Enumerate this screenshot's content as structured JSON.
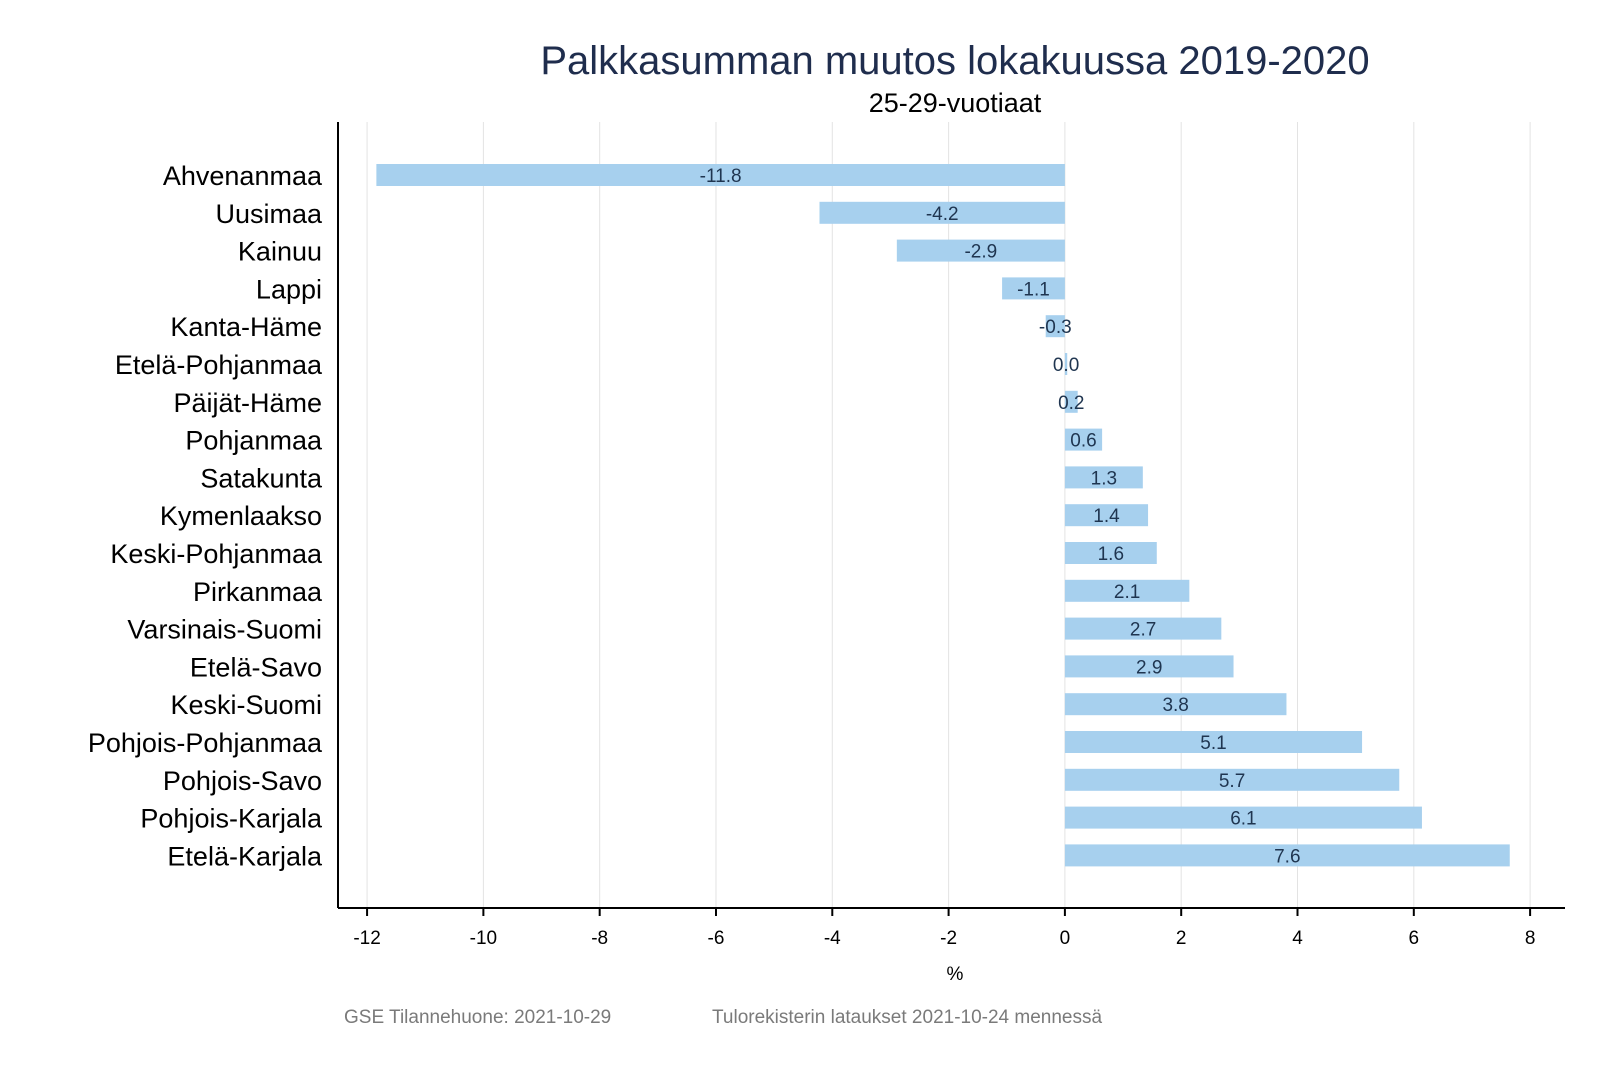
{
  "chart_data": {
    "type": "bar",
    "orientation": "horizontal",
    "title": "Palkkasumman muutos lokakuussa 2019-2020",
    "subtitle": "25-29-vuotiaat",
    "xlabel": "%",
    "ylabel": "",
    "xlim": [
      -12.5,
      8.6
    ],
    "xticks": [
      -12,
      -10,
      -8,
      -6,
      -4,
      -2,
      0,
      2,
      4,
      6,
      8
    ],
    "grid": true,
    "bar_color": "#a7d0ee",
    "categories": [
      "Ahvenanmaa",
      "Uusimaa",
      "Kainuu",
      "Lappi",
      "Kanta-Häme",
      "Etelä-Pohjanmaa",
      "Päijät-Häme",
      "Pohjanmaa",
      "Satakunta",
      "Kymenlaakso",
      "Keski-Pohjanmaa",
      "Pirkanmaa",
      "Varsinais-Suomi",
      "Etelä-Savo",
      "Keski-Suomi",
      "Pohjois-Pohjanmaa",
      "Pohjois-Savo",
      "Pohjois-Karjala",
      "Etelä-Karjala"
    ],
    "values": [
      -11.84,
      -4.22,
      -2.89,
      -1.08,
      -0.33,
      0.04,
      0.22,
      0.64,
      1.34,
      1.43,
      1.58,
      2.14,
      2.69,
      2.9,
      3.81,
      5.11,
      5.75,
      6.14,
      7.65
    ],
    "value_labels": [
      "-11.8",
      "-4.2",
      "-2.9",
      "-1.1",
      "-0.3",
      "0.0",
      "0.2",
      "0.6",
      "1.3",
      "1.4",
      "1.6",
      "2.1",
      "2.7",
      "2.9",
      "3.8",
      "5.1",
      "5.7",
      "6.1",
      "7.6"
    ]
  },
  "footer": {
    "source": "GSE Tilannehuone: 2021-10-29",
    "note": "Tulorekisterin lataukset 2021-10-24 mennessä"
  }
}
